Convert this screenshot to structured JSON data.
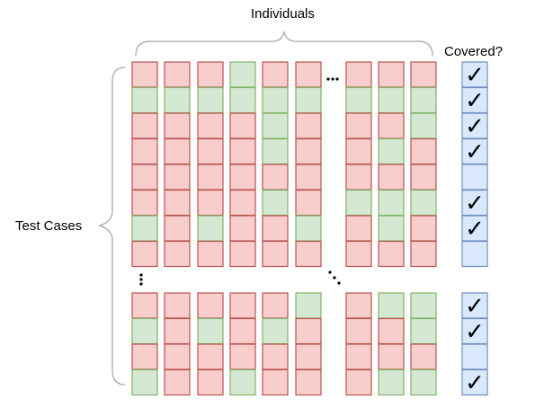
{
  "labels": {
    "top": "Individuals",
    "left": "Test Cases",
    "right": "Covered?"
  },
  "colors": {
    "red_fill": "#f8cecc",
    "red_stroke": "#b85450",
    "green_fill": "#d5e8d4",
    "green_stroke": "#82b366",
    "blue_fill": "#dae8fc",
    "blue_stroke": "#6c8ebf",
    "brace": "#b3b3b3"
  },
  "grid": {
    "top_block": [
      [
        "R",
        "R",
        "R",
        "G",
        "R",
        "R",
        "R",
        "R",
        "R"
      ],
      [
        "G",
        "G",
        "G",
        "G",
        "G",
        "G",
        "G",
        "G",
        "G"
      ],
      [
        "R",
        "R",
        "R",
        "R",
        "G",
        "R",
        "R",
        "R",
        "G"
      ],
      [
        "R",
        "R",
        "R",
        "R",
        "G",
        "R",
        "R",
        "G",
        "R"
      ],
      [
        "R",
        "R",
        "R",
        "R",
        "R",
        "R",
        "R",
        "R",
        "R"
      ],
      [
        "R",
        "R",
        "R",
        "R",
        "G",
        "R",
        "G",
        "G",
        "G"
      ],
      [
        "G",
        "R",
        "G",
        "R",
        "R",
        "G",
        "R",
        "G",
        "R"
      ],
      [
        "R",
        "R",
        "R",
        "R",
        "R",
        "R",
        "R",
        "R",
        "R"
      ]
    ],
    "bottom_block": [
      [
        "R",
        "R",
        "R",
        "R",
        "R",
        "G",
        "R",
        "G",
        "G"
      ],
      [
        "G",
        "R",
        "G",
        "R",
        "G",
        "R",
        "R",
        "R",
        "G"
      ],
      [
        "R",
        "R",
        "R",
        "R",
        "R",
        "R",
        "R",
        "R",
        "R"
      ],
      [
        "G",
        "R",
        "R",
        "G",
        "R",
        "R",
        "R",
        "G",
        "G"
      ]
    ]
  },
  "covered": {
    "top_block": [
      true,
      true,
      true,
      true,
      false,
      true,
      true,
      false
    ],
    "bottom_block": [
      true,
      true,
      false,
      true
    ]
  },
  "checkmark_glyph": "✓"
}
